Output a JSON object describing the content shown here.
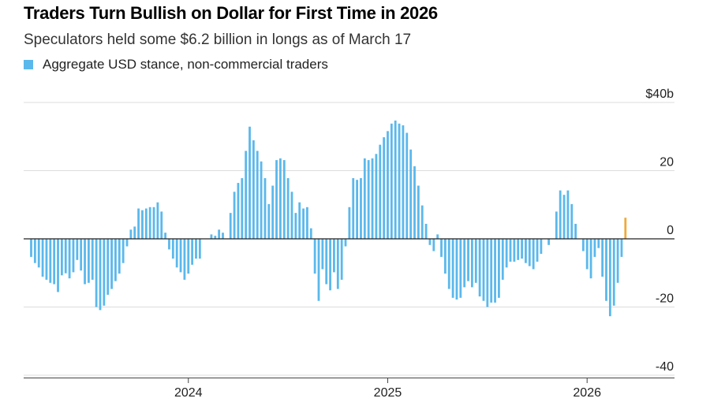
{
  "title": "Traders Turn Bullish on Dollar for First Time in 2026",
  "subtitle": "Speculators held some $6.2 billion in longs as of March 17",
  "legend_label": "Aggregate USD stance, non-commercial traders",
  "colors": {
    "positive_bar": "#5bb8ec",
    "latest_bar": "#f0a93b",
    "grid": "#dcdcdc",
    "zero_line": "#222222"
  },
  "chart_data": {
    "type": "bar",
    "title": "Traders Turn Bullish on Dollar for First Time in 2026",
    "subtitle": "Speculators held some $6.2 billion in longs as of March 17",
    "series": [
      {
        "name": "Aggregate USD stance, non-commercial traders",
        "start_week": "2023-03-21",
        "values": [
          -5.3,
          -7.1,
          -8.4,
          -11.1,
          -12.0,
          -12.9,
          -13.3,
          -15.6,
          -10.7,
          -10.1,
          -11.6,
          -9.8,
          -6.2,
          -9.3,
          -13.3,
          -12.9,
          -12.0,
          -20.0,
          -20.9,
          -19.6,
          -16.4,
          -14.7,
          -12.4,
          -10.2,
          -7.1,
          -2.2,
          2.7,
          3.6,
          8.9,
          8.4,
          8.9,
          9.3,
          9.3,
          10.7,
          8.0,
          1.8,
          -3.1,
          -5.8,
          -8.4,
          -9.8,
          -12.0,
          -10.2,
          -7.6,
          -5.8,
          -5.8,
          0,
          0,
          1.3,
          0.9,
          2.7,
          1.8,
          0,
          7.6,
          13.8,
          16.4,
          17.8,
          25.8,
          32.9,
          28.9,
          25.8,
          22.7,
          17.8,
          10.2,
          15.6,
          23.1,
          23.6,
          23.1,
          17.8,
          13.8,
          7.6,
          10.7,
          8.9,
          9.3,
          3.1,
          -10.2,
          -18.2,
          -8.9,
          -13.3,
          -15.1,
          -9.8,
          -14.7,
          -12.0,
          -2.2,
          9.3,
          17.8,
          17.3,
          17.8,
          23.6,
          23.1,
          23.6,
          24.9,
          27.6,
          29.8,
          31.6,
          33.8,
          34.7,
          33.8,
          33.3,
          31.1,
          26.2,
          21.3,
          15.6,
          9.8,
          4.4,
          -1.8,
          -3.6,
          1.3,
          -5.3,
          -10.2,
          -14.7,
          -17.3,
          -17.8,
          -17.3,
          -14.2,
          -12.4,
          -14.2,
          -12.9,
          -16.9,
          -18.2,
          -20.0,
          -18.7,
          -18.7,
          -17.3,
          -12.0,
          -8.4,
          -6.7,
          -6.7,
          -6.2,
          -5.8,
          -7.1,
          -8.0,
          -8.9,
          -6.7,
          -4.4,
          0,
          -1.8,
          0,
          8.0,
          14.2,
          12.9,
          14.2,
          10.2,
          4.4,
          0,
          -3.6,
          -8.9,
          -11.6,
          -5.3,
          -2.7,
          -11.1,
          -18.2,
          -22.7,
          -19.6,
          -12.9,
          -5.3,
          6.2
        ]
      }
    ],
    "x_tick_labels": [
      "2024",
      "2025",
      "2026"
    ],
    "x_tick_positions_week_index": [
      41,
      93,
      145
    ],
    "y_ticks": [
      -40,
      -20,
      0,
      20,
      40
    ],
    "y_tick_labels": [
      "-40",
      "-20",
      "0",
      "20",
      "$40b"
    ],
    "ylim": [
      -40,
      40
    ],
    "xlabel": "",
    "ylabel": "USD billions",
    "grid": true,
    "latest_value": 6.2,
    "latest_date": "March 17"
  }
}
